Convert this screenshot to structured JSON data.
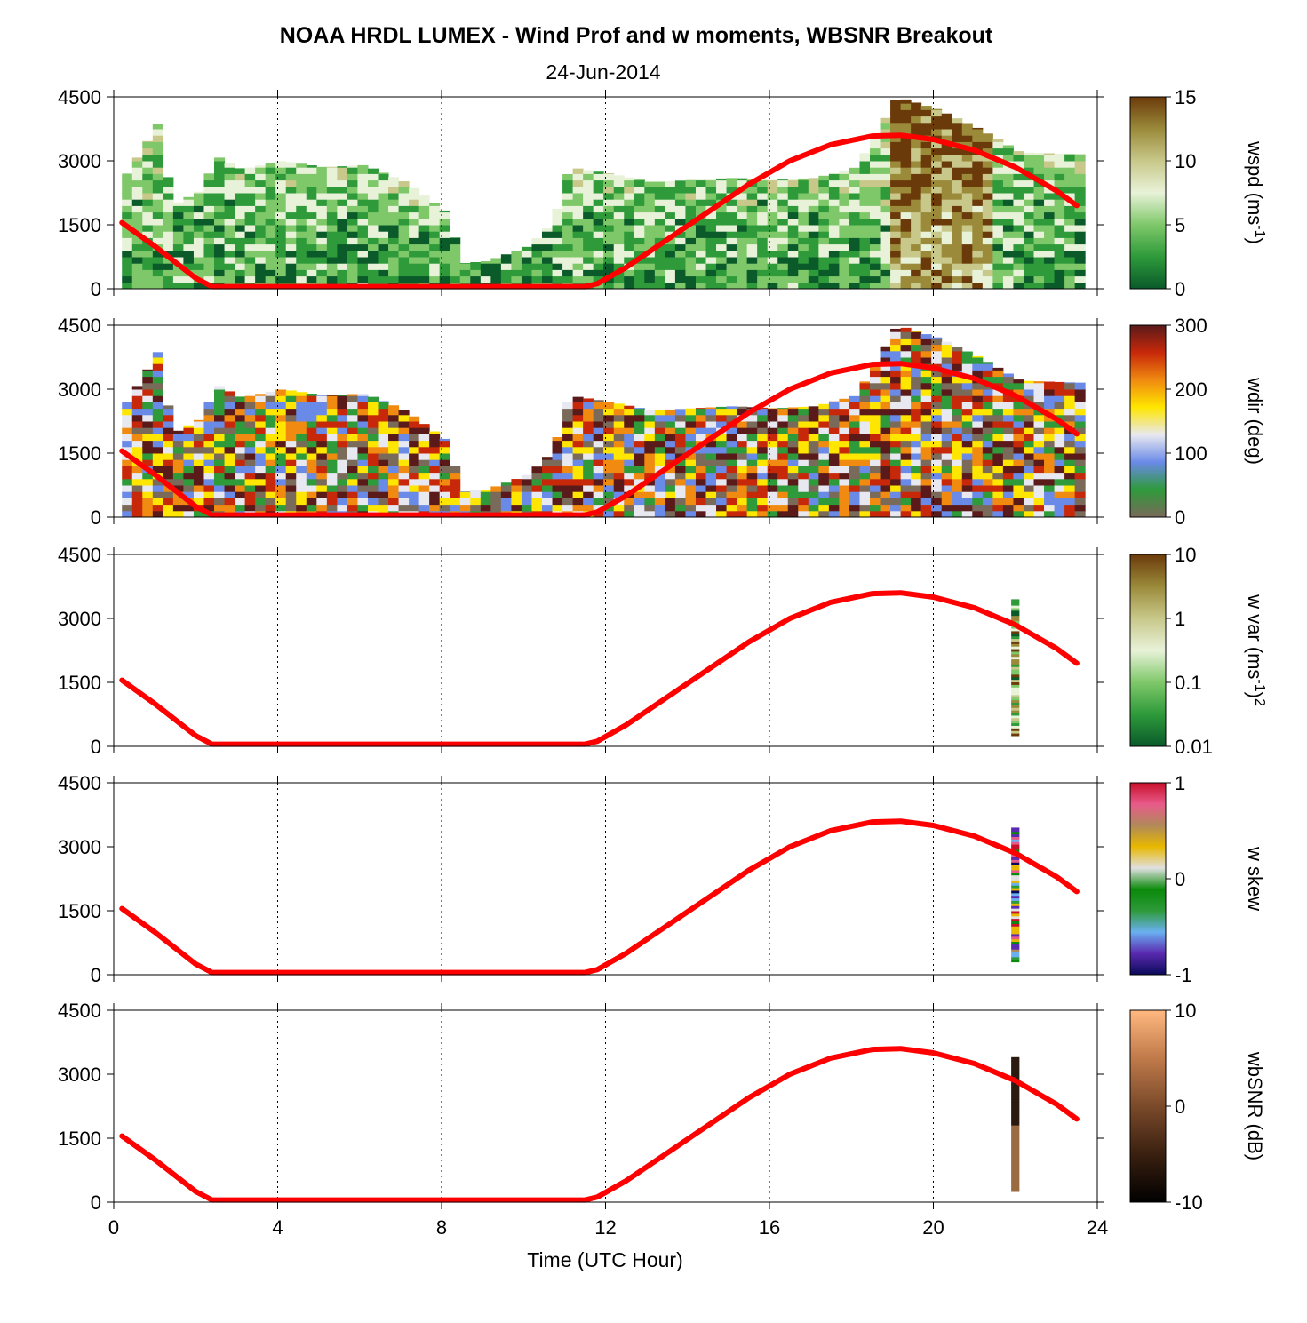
{
  "chart_data": {
    "type": "heatmap",
    "title": "NOAA HRDL LUMEX - Wind Prof and w moments, WBSNR Breakout",
    "subtitle": "24-Jun-2014",
    "xlabel": "Time (UTC Hour)",
    "xlim": [
      0,
      24
    ],
    "x_ticks": [
      0,
      4,
      8,
      12,
      16,
      20,
      24
    ],
    "ylim": [
      0,
      4500
    ],
    "y_ticks": [
      0,
      1500,
      3000,
      4500
    ],
    "grid": "vertical dotted at x ticks",
    "overlay_line": {
      "color": "#ff0000",
      "points": [
        [
          0.2,
          1550
        ],
        [
          1.0,
          1000
        ],
        [
          2.0,
          250
        ],
        [
          2.4,
          50
        ],
        [
          3.0,
          50
        ],
        [
          6.0,
          50
        ],
        [
          9.0,
          50
        ],
        [
          11.5,
          50
        ],
        [
          11.8,
          120
        ],
        [
          12.5,
          500
        ],
        [
          13.5,
          1150
        ],
        [
          14.5,
          1800
        ],
        [
          15.5,
          2450
        ],
        [
          16.5,
          3000
        ],
        [
          17.5,
          3380
        ],
        [
          18.5,
          3580
        ],
        [
          19.2,
          3600
        ],
        [
          20.0,
          3500
        ],
        [
          21.0,
          3250
        ],
        [
          22.0,
          2850
        ],
        [
          23.0,
          2300
        ],
        [
          23.5,
          1950
        ]
      ]
    },
    "panels": [
      {
        "colorbar_label": "wspd (ms",
        "colorbar_label_sup": "-1",
        "colorbar_label_end": ")",
        "colorbar_ticks": [
          "0",
          "5",
          "10",
          "15"
        ],
        "colorbar_colors": [
          "#0a5a2a",
          "#2e9a3a",
          "#7fc86a",
          "#e8f2d8",
          "#c8c88a",
          "#9a8a3a",
          "#6b3a0a"
        ],
        "column_tops": [
          [
            0.2,
            2700
          ],
          [
            0.6,
            3300
          ],
          [
            1.0,
            3950
          ],
          [
            1.3,
            1950
          ],
          [
            2.0,
            2300
          ],
          [
            2.4,
            3100
          ],
          [
            3.0,
            2800
          ],
          [
            4.0,
            3000
          ],
          [
            5.0,
            2850
          ],
          [
            6.0,
            2900
          ],
          [
            7.0,
            2500
          ],
          [
            8.0,
            1800
          ],
          [
            8.4,
            600
          ],
          [
            9.0,
            650
          ],
          [
            10.0,
            1000
          ],
          [
            10.6,
            1550
          ],
          [
            11.0,
            2850
          ],
          [
            12.0,
            2700
          ],
          [
            13.0,
            2500
          ],
          [
            14.0,
            2550
          ],
          [
            15.0,
            2600
          ],
          [
            16.0,
            2550
          ],
          [
            17.0,
            2600
          ],
          [
            18.0,
            2850
          ],
          [
            19.0,
            4500
          ],
          [
            20.0,
            4200
          ],
          [
            21.0,
            3750
          ],
          [
            22.0,
            3200
          ],
          [
            23.5,
            3150
          ]
        ]
      },
      {
        "colorbar_label": "wdir (deg)",
        "colorbar_ticks": [
          "0",
          "100",
          "200",
          "300"
        ],
        "colorbar_colors": [
          "#7a6a5a",
          "#2e9a3a",
          "#6a8ae8",
          "#e8e8f0",
          "#ffe600",
          "#f08a10",
          "#c8280a",
          "#5a1a1a"
        ],
        "column_tops": [
          [
            0.2,
            2700
          ],
          [
            0.6,
            3300
          ],
          [
            1.0,
            3950
          ],
          [
            1.3,
            1950
          ],
          [
            2.0,
            2300
          ],
          [
            2.4,
            3100
          ],
          [
            3.0,
            2800
          ],
          [
            4.0,
            3000
          ],
          [
            5.0,
            2850
          ],
          [
            6.0,
            2900
          ],
          [
            7.0,
            2500
          ],
          [
            8.0,
            1800
          ],
          [
            8.4,
            600
          ],
          [
            9.0,
            650
          ],
          [
            10.0,
            1000
          ],
          [
            10.6,
            1550
          ],
          [
            11.0,
            2850
          ],
          [
            12.0,
            2700
          ],
          [
            13.0,
            2500
          ],
          [
            14.0,
            2550
          ],
          [
            15.0,
            2600
          ],
          [
            16.0,
            2550
          ],
          [
            17.0,
            2600
          ],
          [
            18.0,
            2850
          ],
          [
            19.0,
            4500
          ],
          [
            20.0,
            4200
          ],
          [
            21.0,
            3750
          ],
          [
            22.0,
            3200
          ],
          [
            23.5,
            3150
          ]
        ]
      },
      {
        "colorbar_label": "w var (ms",
        "colorbar_label_sup": "-1",
        "colorbar_label_end": ")",
        "colorbar_label_sup2": "2",
        "colorbar_ticks": [
          "0.01",
          "0.1",
          "1",
          "10"
        ],
        "colorbar_colors": [
          "#0a5a2a",
          "#2e9a3a",
          "#7fc86a",
          "#e8f2d8",
          "#c8c88a",
          "#9a8a3a",
          "#6b3a0a"
        ],
        "data_strip": {
          "x": [
            21.9,
            22.1
          ],
          "y": [
            250,
            3450
          ]
        }
      },
      {
        "colorbar_label": "w skew",
        "colorbar_ticks": [
          "-1",
          "0",
          "1"
        ],
        "colorbar_colors": [
          "#0a0a5a",
          "#5a2ab0",
          "#6ab0f0",
          "#2e9a3a",
          "#0a8a0a",
          "#e0e0e0",
          "#e8b800",
          "#b08a5a",
          "#e85a8a",
          "#c8102a"
        ],
        "data_strip": {
          "x": [
            21.9,
            22.1
          ],
          "y": [
            300,
            3450
          ]
        }
      },
      {
        "colorbar_label": "wbSNR (dB)",
        "colorbar_ticks": [
          "-10",
          "0",
          "10"
        ],
        "colorbar_colors": [
          "#000000",
          "#3a2010",
          "#7a4a2a",
          "#c07a4a",
          "#ffb880"
        ],
        "data_strip": {
          "x": [
            21.9,
            22.1
          ],
          "y": [
            250,
            3400
          ]
        }
      }
    ]
  }
}
